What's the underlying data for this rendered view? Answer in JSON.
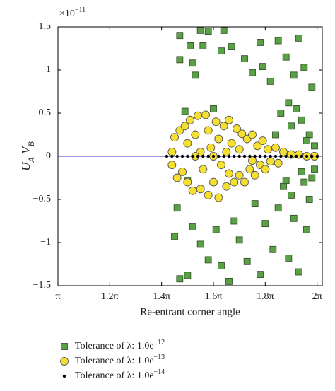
{
  "chart_data": {
    "type": "scatter",
    "x_label": "Re-entrant corner angle",
    "y_label": [
      {
        "text": "U"
      },
      {
        "text": "A",
        "sub": true
      },
      {
        "text": " V"
      },
      {
        "text": "B",
        "sub": true
      }
    ],
    "y_offset_label": {
      "base": "×10",
      "sup": "−11"
    },
    "xlim": [
      1,
      2.02
    ],
    "ylim": [
      -1.5,
      1.5
    ],
    "xticks": [
      {
        "value": 1,
        "label": "π"
      },
      {
        "value": 1.2,
        "label": "1.2π"
      },
      {
        "value": 1.4,
        "label": "1.4π"
      },
      {
        "value": 1.6,
        "label": "1.6π"
      },
      {
        "value": 1.8,
        "label": "1.8π"
      },
      {
        "value": 2,
        "label": "2π"
      }
    ],
    "yticks": [
      {
        "value": -1.5,
        "label": "−1.5"
      },
      {
        "value": -1,
        "label": "−1"
      },
      {
        "value": -0.5,
        "label": "−0.5"
      },
      0,
      0.5,
      1,
      1.5
    ],
    "hline": 0,
    "hline_color": "#3333cc",
    "series": [
      {
        "name": "Tolerance of λ: 1.0e",
        "name_sup": "−12",
        "marker": "square",
        "color": "#5aa046",
        "x": [
          1.47,
          1.52,
          1.55,
          1.58,
          1.64,
          1.56,
          1.51,
          1.53,
          1.49,
          1.47,
          1.6,
          1.63,
          1.67,
          1.72,
          1.75,
          1.78,
          1.79,
          1.82,
          1.85,
          1.88,
          1.91,
          1.93,
          1.95,
          1.98,
          1.86,
          1.9,
          1.94,
          1.97,
          1.99,
          1.96,
          1.92,
          1.89,
          1.84,
          1.45,
          1.47,
          1.5,
          1.52,
          1.55,
          1.58,
          1.61,
          1.63,
          1.66,
          1.68,
          1.7,
          1.73,
          1.76,
          1.78,
          1.8,
          1.83,
          1.85,
          1.87,
          1.89,
          1.91,
          1.93,
          1.95,
          1.97,
          1.99,
          1.96,
          1.94,
          1.9,
          1.88,
          1.98,
          1.5,
          1.46
        ],
        "values": [
          1.4,
          1.08,
          1.46,
          1.45,
          1.46,
          1.28,
          1.28,
          0.94,
          0.52,
          1.12,
          0.55,
          1.22,
          1.27,
          1.13,
          0.97,
          1.32,
          1.04,
          0.87,
          1.34,
          1.15,
          0.94,
          1.37,
          1.03,
          0.8,
          0.5,
          0.35,
          0.42,
          0.25,
          0.12,
          0.18,
          0.55,
          0.62,
          0.25,
          -0.93,
          -1.42,
          -1.38,
          -0.82,
          -1.02,
          -1.2,
          -0.85,
          -1.27,
          -1.45,
          -0.75,
          -0.97,
          -1.22,
          -0.55,
          -1.37,
          -0.78,
          -1.08,
          -0.6,
          -0.35,
          -1.18,
          -0.72,
          -1.34,
          -0.3,
          -0.5,
          -0.15,
          -0.85,
          -0.18,
          -0.45,
          -0.28,
          -0.25,
          -0.28,
          -0.6
        ]
      },
      {
        "name": "Tolerance of λ: 1.0e",
        "name_sup": "−13",
        "marker": "circle",
        "color": "#f5e031",
        "x": [
          1.44,
          1.44,
          1.45,
          1.46,
          1.47,
          1.48,
          1.49,
          1.5,
          1.5,
          1.51,
          1.52,
          1.53,
          1.54,
          1.55,
          1.55,
          1.56,
          1.57,
          1.58,
          1.58,
          1.59,
          1.6,
          1.61,
          1.62,
          1.62,
          1.63,
          1.64,
          1.65,
          1.66,
          1.66,
          1.67,
          1.68,
          1.69,
          1.7,
          1.7,
          1.71,
          1.72,
          1.73,
          1.74,
          1.75,
          1.76,
          1.77,
          1.78,
          1.79,
          1.8,
          1.81,
          1.82,
          1.84,
          1.85,
          1.87,
          1.9,
          1.93,
          1.96,
          1.99,
          1.53,
          1.6,
          1.65,
          1.75
        ],
        "values": [
          0.05,
          -0.1,
          0.22,
          -0.25,
          0.3,
          -0.18,
          0.35,
          -0.3,
          0.15,
          0.42,
          -0.4,
          0.25,
          0.47,
          -0.38,
          0.05,
          -0.15,
          0.48,
          0.3,
          -0.45,
          0.1,
          -0.3,
          0.4,
          -0.48,
          0.2,
          -0.1,
          0.35,
          -0.35,
          0.42,
          -0.2,
          0.15,
          -0.3,
          0.32,
          -0.22,
          0.08,
          0.26,
          -0.3,
          0.2,
          -0.15,
          0.25,
          -0.22,
          0.12,
          -0.1,
          0.18,
          -0.15,
          0.08,
          -0.06,
          0.1,
          -0.08,
          0.05,
          0.02,
          0.02,
          0,
          0,
          0,
          0,
          0.05,
          -0.05
        ]
      },
      {
        "name": "Tolerance of λ: 1.0e",
        "name_sup": "−14",
        "marker": "dot",
        "color": "#000000",
        "x": [
          1.42,
          1.44,
          1.46,
          1.48,
          1.5,
          1.52,
          1.54,
          1.56,
          1.58,
          1.6,
          1.62,
          1.64,
          1.66,
          1.68,
          1.7,
          1.72,
          1.74,
          1.76,
          1.78,
          1.8,
          1.82,
          1.84,
          1.86,
          1.88,
          1.9,
          1.92,
          1.94,
          1.96,
          1.98,
          2.0
        ],
        "values": [
          0,
          0,
          0,
          0,
          0,
          0,
          0,
          0,
          0,
          0,
          0,
          0,
          0,
          0,
          0,
          0,
          0,
          0,
          0,
          0,
          0,
          0,
          0,
          0,
          0,
          0,
          0,
          0,
          0,
          0
        ]
      }
    ]
  }
}
